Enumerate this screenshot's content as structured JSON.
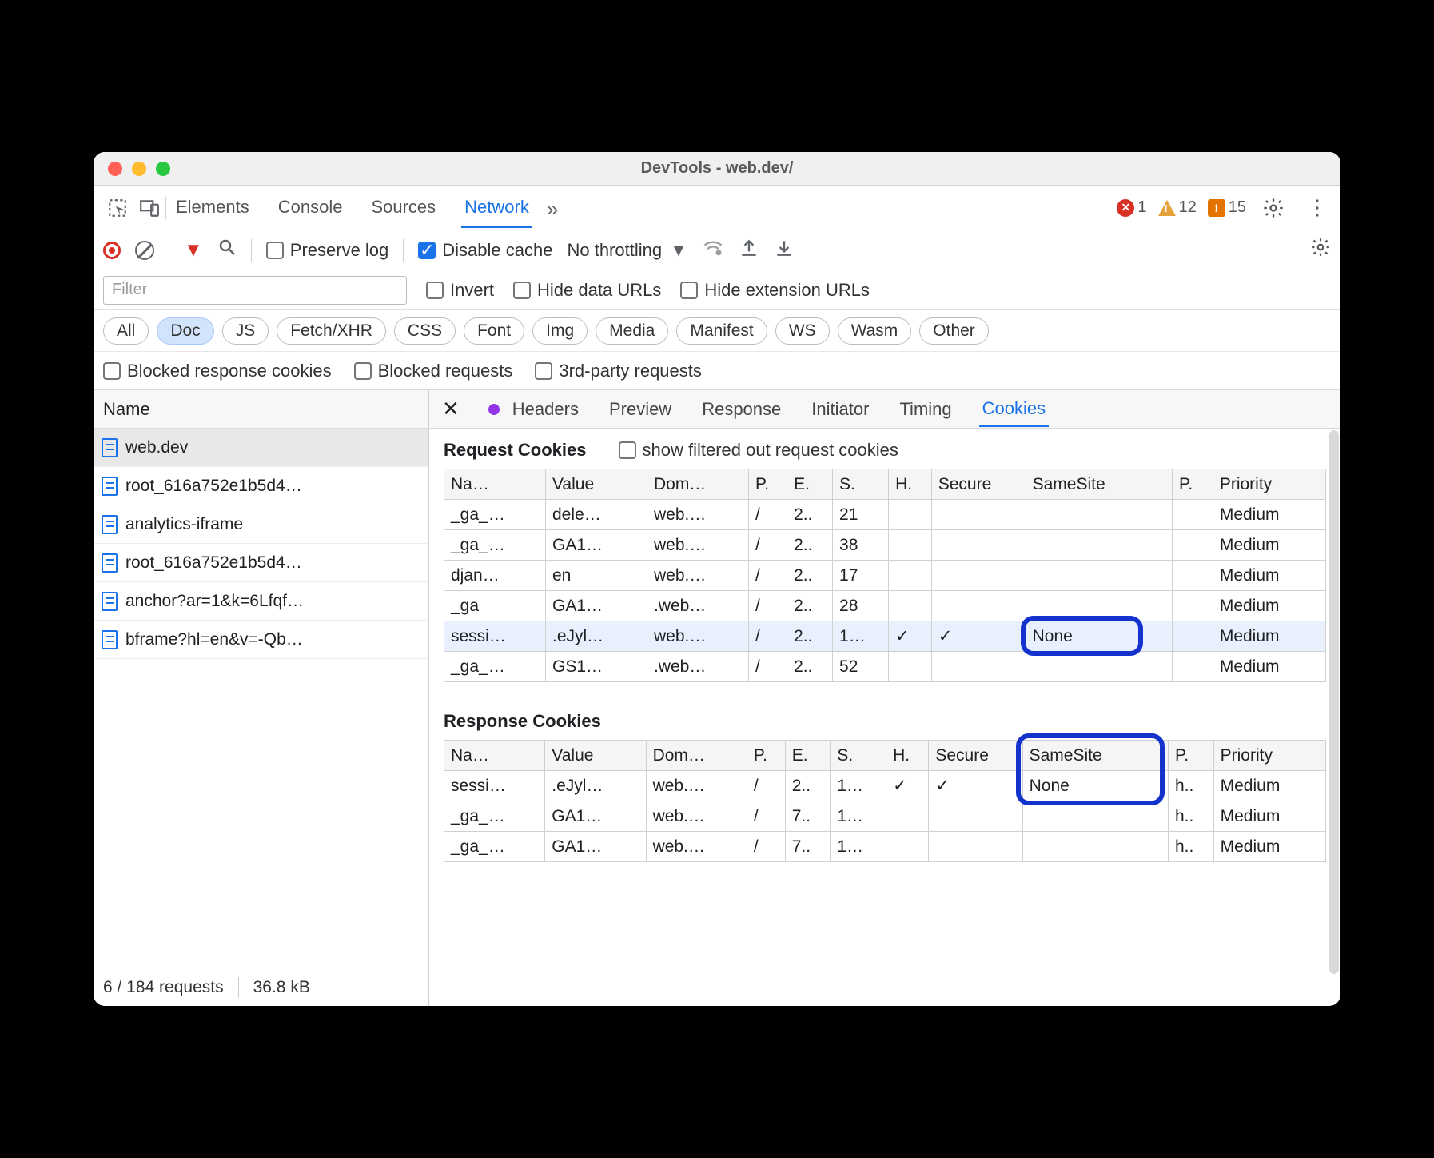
{
  "colors": {
    "accent": "#1a73e8",
    "error": "#d93025",
    "warning": "#e37400",
    "highlight_border": "#1433cc",
    "row_highlight_bg": "#e8f0fe",
    "pill_selected_bg": "#d2e3fc"
  },
  "window": {
    "title": "DevTools - web.dev/"
  },
  "main_tabs": {
    "items": [
      "Elements",
      "Console",
      "Sources",
      "Network"
    ],
    "active": "Network"
  },
  "status": {
    "errors": "1",
    "warnings": "12",
    "issues": "15"
  },
  "nettoolbar": {
    "preserve_label": "Preserve log",
    "preserve_checked": false,
    "disable_cache_label": "Disable cache",
    "disable_cache_checked": true,
    "throttling_label": "No throttling"
  },
  "filter_placeholder": "Filter",
  "filter_row": {
    "invert_label": "Invert",
    "hide_data_label": "Hide data URLs",
    "hide_ext_label": "Hide extension URLs"
  },
  "type_pills": [
    "All",
    "Doc",
    "JS",
    "Fetch/XHR",
    "CSS",
    "Font",
    "Img",
    "Media",
    "Manifest",
    "WS",
    "Wasm",
    "Other"
  ],
  "type_selected": "Doc",
  "blocked_row": {
    "blocked_cookies": "Blocked response cookies",
    "blocked_requests": "Blocked requests",
    "third_party": "3rd-party requests"
  },
  "left": {
    "header": "Name",
    "requests": [
      "web.dev",
      "root_616a752e1b5d4…",
      "analytics-iframe",
      "root_616a752e1b5d4…",
      "anchor?ar=1&k=6Lfqf…",
      "bframe?hl=en&v=-Qb…"
    ],
    "selected_index": 0,
    "footer_count": "6 / 184 requests",
    "footer_size": "36.8 kB"
  },
  "detail_tabs": {
    "items": [
      "Headers",
      "Preview",
      "Response",
      "Initiator",
      "Timing",
      "Cookies"
    ],
    "active": "Cookies"
  },
  "request_cookies": {
    "title": "Request Cookies",
    "show_filtered_label": "show filtered out request cookies",
    "columns": [
      "Na…",
      "Value",
      "Dom…",
      "P.",
      "E.",
      "S.",
      "H.",
      "Secure",
      "SameSite",
      "P.",
      "Priority"
    ],
    "rows": [
      {
        "name": "_ga_…",
        "value": "dele…",
        "domain": "web.…",
        "path": "/",
        "exp": "2..",
        "size": "21",
        "http": "",
        "secure": "",
        "samesite": "",
        "part": "",
        "priority": "Medium"
      },
      {
        "name": "_ga_…",
        "value": "GA1…",
        "domain": "web.…",
        "path": "/",
        "exp": "2..",
        "size": "38",
        "http": "",
        "secure": "",
        "samesite": "",
        "part": "",
        "priority": "Medium"
      },
      {
        "name": "djan…",
        "value": "en",
        "domain": "web.…",
        "path": "/",
        "exp": "2..",
        "size": "17",
        "http": "",
        "secure": "",
        "samesite": "",
        "part": "",
        "priority": "Medium"
      },
      {
        "name": "_ga",
        "value": "GA1…",
        "domain": ".web…",
        "path": "/",
        "exp": "2..",
        "size": "28",
        "http": "",
        "secure": "",
        "samesite": "",
        "part": "",
        "priority": "Medium"
      },
      {
        "name": "sessi…",
        "value": ".eJyl…",
        "domain": "web.…",
        "path": "/",
        "exp": "2..",
        "size": "1…",
        "http": "✓",
        "secure": "✓",
        "samesite": "None",
        "part": "",
        "priority": "Medium",
        "highlight": true
      },
      {
        "name": "_ga_…",
        "value": "GS1…",
        "domain": ".web…",
        "path": "/",
        "exp": "2..",
        "size": "52",
        "http": "",
        "secure": "",
        "samesite": "",
        "part": "",
        "priority": "Medium"
      }
    ]
  },
  "response_cookies": {
    "title": "Response Cookies",
    "columns": [
      "Na…",
      "Value",
      "Dom…",
      "P.",
      "E.",
      "S.",
      "H.",
      "Secure",
      "SameSite",
      "P.",
      "Priority"
    ],
    "rows": [
      {
        "name": "sessi…",
        "value": ".eJyl…",
        "domain": "web.…",
        "path": "/",
        "exp": "2..",
        "size": "1…",
        "http": "✓",
        "secure": "✓",
        "samesite": "None",
        "part": "h..",
        "priority": "Medium"
      },
      {
        "name": "_ga_…",
        "value": "GA1…",
        "domain": "web.…",
        "path": "/",
        "exp": "7..",
        "size": "1…",
        "http": "",
        "secure": "",
        "samesite": "",
        "part": "h..",
        "priority": "Medium"
      },
      {
        "name": "_ga_…",
        "value": "GA1…",
        "domain": "web.…",
        "path": "/",
        "exp": "7..",
        "size": "1…",
        "http": "",
        "secure": "",
        "samesite": "",
        "part": "h..",
        "priority": "Medium"
      }
    ]
  },
  "callouts": {
    "request_samesite_cell": true,
    "response_samesite_header_cell": true
  }
}
